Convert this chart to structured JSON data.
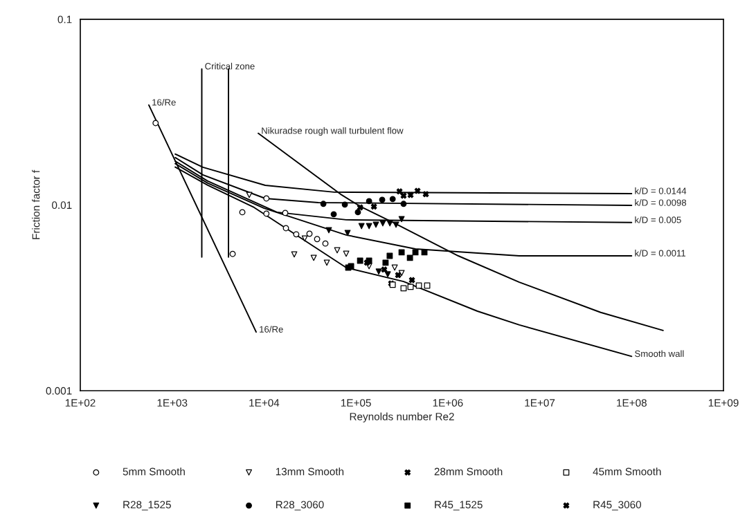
{
  "chart_data": {
    "type": "scatter",
    "xlabel": "Reynolds number Re2",
    "ylabel": "Friction factor f",
    "log": "xy",
    "xlim": [
      100,
      1000000000
    ],
    "ylim": [
      0.001,
      0.1
    ],
    "xticks": [
      {
        "value": 100,
        "label": "1E+02"
      },
      {
        "value": 1000,
        "label": "1E+03"
      },
      {
        "value": 10000,
        "label": "1E+04"
      },
      {
        "value": 100000,
        "label": "1E+05"
      },
      {
        "value": 1000000,
        "label": "1E+06"
      },
      {
        "value": 10000000,
        "label": "1E+07"
      },
      {
        "value": 100000000,
        "label": "1E+08"
      },
      {
        "value": 1000000000,
        "label": "1E+09"
      }
    ],
    "yticks": [
      0.001,
      0.01,
      0.1
    ],
    "grid": false,
    "legend": "bottom",
    "series": [
      {
        "name": "5mm Smooth",
        "color": "#ffffff",
        "marker": "circle",
        "x": [
          660,
          4550,
          5800,
          10600,
          17000,
          10600,
          17300,
          22400,
          31200,
          37800,
          46500
        ],
        "values": [
          0.0276,
          0.00545,
          0.00914,
          0.00898,
          0.00906,
          0.01084,
          0.0075,
          0.00695,
          0.007,
          0.00655,
          0.0062
        ]
      },
      {
        "name": "13mm Smooth",
        "color": "#ffffff",
        "marker": "triangle",
        "x": [
          6900,
          21300,
          34700,
          48200,
          27700,
          62500,
          78300,
          139000,
          264000,
          314000
        ],
        "values": [
          0.01132,
          0.00542,
          0.00519,
          0.00489,
          0.0066,
          0.0057,
          0.00546,
          0.00468,
          0.0046,
          0.0043
        ]
      },
      {
        "name": "28mm Smooth",
        "color": "#000000",
        "marker": "cross",
        "x": [
          132000,
          203000,
          288000,
          407000,
          242000
        ],
        "values": [
          0.00489,
          0.00449,
          0.00419,
          0.00394,
          0.00378
        ]
      },
      {
        "name": "45mm Smooth",
        "color": "#ffffff",
        "marker": "square",
        "x": [
          251000,
          330000,
          393000,
          484000,
          596000
        ],
        "values": [
          0.00372,
          0.00356,
          0.00362,
          0.00368,
          0.00368
        ]
      },
      {
        "name": "R28_1525",
        "color": "#000000",
        "marker": "triangle",
        "x": [
          50700,
          81100,
          115000,
          139000,
          165000,
          196000,
          234000,
          273000,
          314000,
          177000,
          222000
        ],
        "values": [
          0.00731,
          0.00707,
          0.00769,
          0.00769,
          0.00783,
          0.00796,
          0.00796,
          0.00783,
          0.00839,
          0.00438,
          0.00423
        ]
      },
      {
        "name": "R28_3060",
        "color": "#000000",
        "marker": "circle",
        "x": [
          44200,
          75700,
          139000,
          193000,
          251000,
          330000,
          57300,
          105000
        ],
        "values": [
          0.01014,
          0.01005,
          0.01048,
          0.01066,
          0.01076,
          0.01014,
          0.00891,
          0.00914
        ]
      },
      {
        "name": "R45_1525",
        "color": "#000000",
        "marker": "square",
        "x": [
          233000,
          314000,
          387000,
          444000,
          556000,
          88500,
          111000,
          139000,
          210000,
          82500
        ],
        "values": [
          0.00532,
          0.00556,
          0.00519,
          0.00556,
          0.00556,
          0.00468,
          0.00501,
          0.00501,
          0.00489,
          0.0046
        ]
      },
      {
        "name": "R45_3060",
        "color": "#000000",
        "marker": "cross",
        "x": [
          298000,
          330000,
          393000,
          468000,
          576000,
          111000,
          157000
        ],
        "values": [
          0.01183,
          0.01122,
          0.01132,
          0.01191,
          0.01143,
          0.0097,
          0.0098
        ]
      },
      {
        "type": "line",
        "color": "#000000",
        "marker": "none",
        "x": [
          557,
          8200
        ],
        "values": [
          0.0345,
          0.00207
        ]
      },
      {
        "type": "line",
        "color": "#000000",
        "marker": "none",
        "x": [
          2100,
          2100
        ],
        "values": [
          0.00524,
          0.054
        ]
      },
      {
        "type": "line",
        "color": "#000000",
        "marker": "none",
        "x": [
          4100,
          4100
        ],
        "values": [
          0.00524,
          0.054
        ]
      },
      {
        "type": "line",
        "color": "#000000",
        "marker": "none",
        "x": [
          8650,
          68000,
          110000,
          255000,
          1300000,
          6000000,
          46000000,
          220000000
        ],
        "values": [
          0.0243,
          0.01143,
          0.00986,
          0.00804,
          0.00532,
          0.00384,
          0.00264,
          0.00211
        ]
      },
      {
        "type": "line",
        "color": "#000000",
        "marker": "none",
        "x": [
          1080,
          2440,
          7780,
          78300,
          330000,
          2100000,
          6000000,
          100000000
        ],
        "values": [
          0.016,
          0.01277,
          0.0097,
          0.0046,
          0.00387,
          0.00268,
          0.00226,
          0.00153
        ]
      },
      {
        "type": "line",
        "color": "#000000",
        "marker": "none",
        "x": [
          1080,
          2160,
          10300,
          58000,
          100000000
        ],
        "values": [
          0.0188,
          0.01596,
          0.01276,
          0.01172,
          0.01151
        ]
      },
      {
        "type": "line",
        "color": "#000000",
        "marker": "none",
        "x": [
          1080,
          2160,
          10300,
          39000,
          100000000
        ],
        "values": [
          0.01799,
          0.01452,
          0.01084,
          0.0103,
          0.00995
        ]
      },
      {
        "type": "line",
        "color": "#000000",
        "marker": "none",
        "x": [
          1080,
          2440,
          13800,
          78300,
          100000000
        ],
        "values": [
          0.0172,
          0.01344,
          0.00914,
          0.00832,
          0.00804
        ]
      },
      {
        "type": "line",
        "color": "#000000",
        "marker": "none",
        "x": [
          1080,
          2440,
          10000,
          78300,
          444000,
          6000000,
          100000000
        ],
        "values": [
          0.0167,
          0.0131,
          0.0096,
          0.00689,
          0.0058,
          0.00532,
          0.00532
        ]
      }
    ],
    "annotations": [
      {
        "text": "16/Re",
        "x": 557,
        "y": 0.0345
      },
      {
        "text": "16/Re",
        "x": 8200,
        "y": 0.00207
      },
      {
        "text": "Critical zone",
        "x": 2100,
        "y": 0.054
      },
      {
        "text": "Nikuradse rough wall turbulent flow",
        "x": 8650,
        "y": 0.0243
      },
      {
        "text": "k/D = 0.0144",
        "x": 100000000,
        "y": 0.01151
      },
      {
        "text": "k/D = 0.0098",
        "x": 100000000,
        "y": 0.00995
      },
      {
        "text": "k/D = 0.005",
        "x": 100000000,
        "y": 0.00804
      },
      {
        "text": "k/D = 0.0011",
        "x": 100000000,
        "y": 0.00532
      },
      {
        "text": "Smooth wall",
        "x": 100000000,
        "y": 0.00153
      }
    ]
  }
}
